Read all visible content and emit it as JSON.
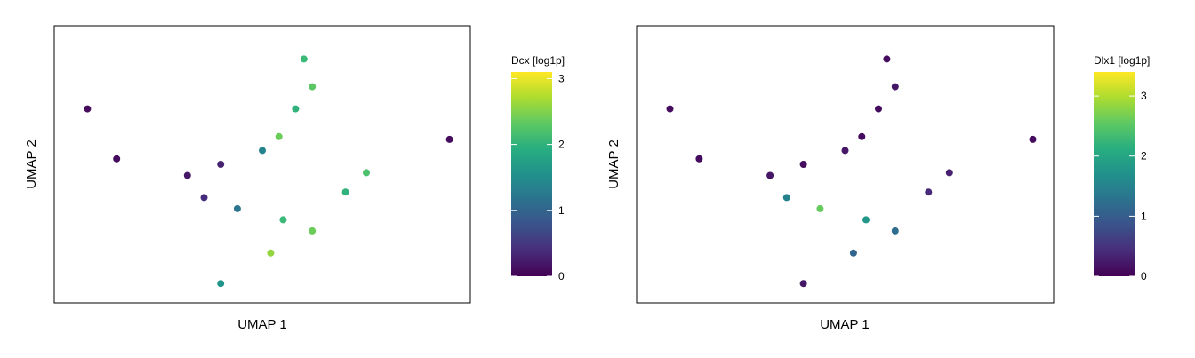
{
  "chart_data": [
    {
      "type": "scatter",
      "title": "",
      "xlabel": "UMAP 1",
      "ylabel": "UMAP 2",
      "grid": false,
      "colorbar": {
        "title": "Dcx [log1p]",
        "colormap": "viridis",
        "range": [
          0,
          3.1
        ],
        "ticks": [
          0,
          1,
          2,
          3
        ],
        "tick_labels": [
          "0",
          "1",
          "2",
          "3"
        ],
        "placement": "right"
      },
      "series": [
        {
          "values": [
            {
              "x": 0.6,
              "y": 0.88,
              "v": 2.1
            },
            {
              "x": 0.62,
              "y": 0.78,
              "v": 2.3
            },
            {
              "x": 0.58,
              "y": 0.7,
              "v": 2.0
            },
            {
              "x": 0.54,
              "y": 0.6,
              "v": 2.4
            },
            {
              "x": 0.5,
              "y": 0.55,
              "v": 1.4
            },
            {
              "x": 0.4,
              "y": 0.5,
              "v": 0.3
            },
            {
              "x": 0.32,
              "y": 0.46,
              "v": 0.2
            },
            {
              "x": 0.36,
              "y": 0.38,
              "v": 0.4
            },
            {
              "x": 0.44,
              "y": 0.34,
              "v": 1.2
            },
            {
              "x": 0.55,
              "y": 0.3,
              "v": 2.1
            },
            {
              "x": 0.62,
              "y": 0.26,
              "v": 2.4
            },
            {
              "x": 0.7,
              "y": 0.4,
              "v": 2.0
            },
            {
              "x": 0.75,
              "y": 0.47,
              "v": 2.2
            },
            {
              "x": 0.52,
              "y": 0.18,
              "v": 2.6
            },
            {
              "x": 0.4,
              "y": 0.07,
              "v": 1.6
            },
            {
              "x": 0.08,
              "y": 0.7,
              "v": 0.1
            },
            {
              "x": 0.15,
              "y": 0.52,
              "v": 0.1
            },
            {
              "x": 0.95,
              "y": 0.59,
              "v": 0.1
            }
          ]
        }
      ]
    },
    {
      "type": "scatter",
      "title": "",
      "xlabel": "UMAP 1",
      "ylabel": "UMAP 2",
      "grid": false,
      "colorbar": {
        "title": "Dlx1 [log1p]",
        "colormap": "viridis",
        "range": [
          0,
          3.4
        ],
        "ticks": [
          0,
          1,
          2,
          3
        ],
        "tick_labels": [
          "0",
          "1",
          "2",
          "3"
        ],
        "placement": "right"
      },
      "series": [
        {
          "values": [
            {
              "x": 0.6,
              "y": 0.88,
              "v": 0.1
            },
            {
              "x": 0.62,
              "y": 0.78,
              "v": 0.2
            },
            {
              "x": 0.58,
              "y": 0.7,
              "v": 0.1
            },
            {
              "x": 0.54,
              "y": 0.6,
              "v": 0.1
            },
            {
              "x": 0.5,
              "y": 0.55,
              "v": 0.2
            },
            {
              "x": 0.4,
              "y": 0.5,
              "v": 0.1
            },
            {
              "x": 0.32,
              "y": 0.46,
              "v": 0.2
            },
            {
              "x": 0.36,
              "y": 0.38,
              "v": 1.5
            },
            {
              "x": 0.44,
              "y": 0.34,
              "v": 2.6
            },
            {
              "x": 0.55,
              "y": 0.3,
              "v": 1.8
            },
            {
              "x": 0.62,
              "y": 0.26,
              "v": 1.2
            },
            {
              "x": 0.7,
              "y": 0.4,
              "v": 0.4
            },
            {
              "x": 0.75,
              "y": 0.47,
              "v": 0.3
            },
            {
              "x": 0.52,
              "y": 0.18,
              "v": 1.1
            },
            {
              "x": 0.4,
              "y": 0.07,
              "v": 0.2
            },
            {
              "x": 0.08,
              "y": 0.7,
              "v": 0.1
            },
            {
              "x": 0.15,
              "y": 0.52,
              "v": 0.1
            },
            {
              "x": 0.95,
              "y": 0.59,
              "v": 0.1
            }
          ]
        }
      ]
    }
  ]
}
